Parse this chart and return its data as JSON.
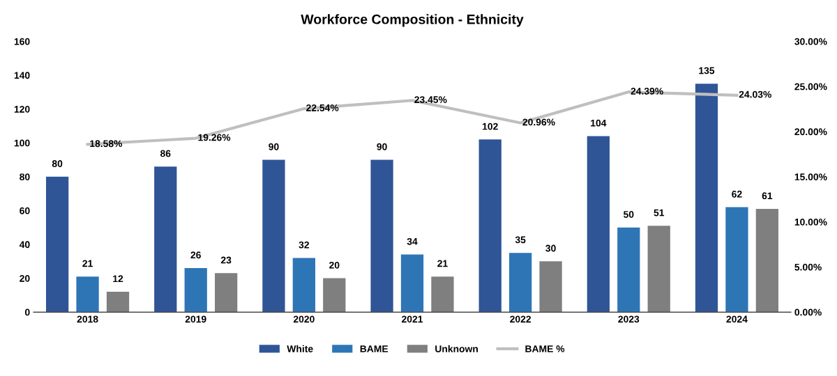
{
  "chart_data": {
    "type": "bar",
    "title": "Workforce Composition - Ethnicity",
    "categories": [
      "2018",
      "2019",
      "2020",
      "2021",
      "2022",
      "2023",
      "2024"
    ],
    "series": [
      {
        "name": "White",
        "color": "#2f5597",
        "values": [
          80,
          86,
          90,
          90,
          102,
          104,
          135
        ]
      },
      {
        "name": "BAME",
        "color": "#2e75b6",
        "values": [
          21,
          26,
          32,
          34,
          35,
          50,
          62
        ]
      },
      {
        "name": "Unknown",
        "color": "#7f7f7f",
        "values": [
          12,
          23,
          20,
          21,
          30,
          51,
          61
        ]
      },
      {
        "name": "BAME %",
        "type": "line",
        "axis": "y2",
        "color": "#bfbfbf",
        "values": [
          18.58,
          19.26,
          22.54,
          23.45,
          20.96,
          24.39,
          24.03
        ],
        "value_labels": [
          "18.58%",
          "19.26%",
          "22.54%",
          "23.45%",
          "20.96%",
          "24.39%",
          "24.03%"
        ]
      }
    ],
    "ylim": [
      0,
      160
    ],
    "yticks": [
      0,
      20,
      40,
      60,
      80,
      100,
      120,
      140,
      160
    ],
    "y2lim": [
      0,
      30
    ],
    "y2ticks": [
      {
        "value": 0,
        "label": "0.00%"
      },
      {
        "value": 5,
        "label": "5.00%"
      },
      {
        "value": 10,
        "label": "10.00%"
      },
      {
        "value": 15,
        "label": "15.00%"
      },
      {
        "value": 20,
        "label": "20.00%"
      },
      {
        "value": 25,
        "label": "25.00%"
      },
      {
        "value": 30,
        "label": "30.00%"
      }
    ],
    "data_labels": true,
    "grid": false,
    "legend": "bottom"
  }
}
